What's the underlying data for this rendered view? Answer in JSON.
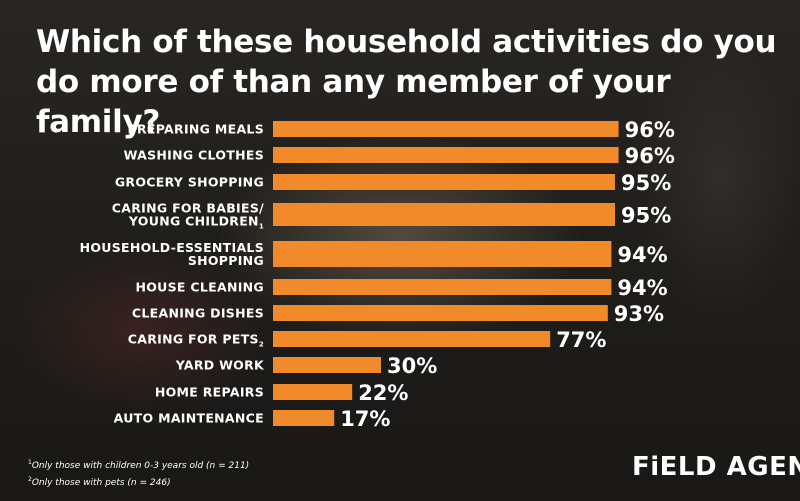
{
  "title": "Which of these household activities do you do more of than any member of your family?",
  "chart_data": {
    "type": "bar",
    "orientation": "horizontal",
    "categories": [
      [
        "PREPARING MEALS"
      ],
      [
        "WASHING CLOTHES"
      ],
      [
        "GROCERY SHOPPING"
      ],
      [
        "CARING FOR BABIES/",
        "YOUNG CHILDREN"
      ],
      [
        "HOUSEHOLD-ESSENTIALS",
        "SHOPPING"
      ],
      [
        "HOUSE CLEANING"
      ],
      [
        "CLEANING DISHES"
      ],
      [
        "CARING FOR PETS"
      ],
      [
        "YARD WORK"
      ],
      [
        "HOME REPAIRS"
      ],
      [
        "AUTO MAINTENANCE"
      ]
    ],
    "footnote_refs": [
      "",
      "",
      "",
      "1",
      "",
      "",
      "",
      "2",
      "",
      "",
      ""
    ],
    "values": [
      96,
      96,
      95,
      95,
      94,
      94,
      93,
      77,
      30,
      22,
      17
    ],
    "value_labels": [
      "96%",
      "96%",
      "95%",
      "95%",
      "94%",
      "94%",
      "93%",
      "77%",
      "30%",
      "22%",
      "17%"
    ],
    "unit": "%",
    "bar_color": "#f08a2a",
    "text_color": "#ffffff",
    "xlim": [
      0,
      100
    ],
    "grid": false,
    "legend": "none"
  },
  "footnotes": {
    "fn1_mark": "1",
    "fn1_text": "Only those with children 0-3 years old (n = 211)",
    "fn2_mark": "2",
    "fn2_text": "Only those with pets (n = 246)"
  },
  "brand": {
    "name": "FiELD AGENT",
    "mark": "®"
  }
}
